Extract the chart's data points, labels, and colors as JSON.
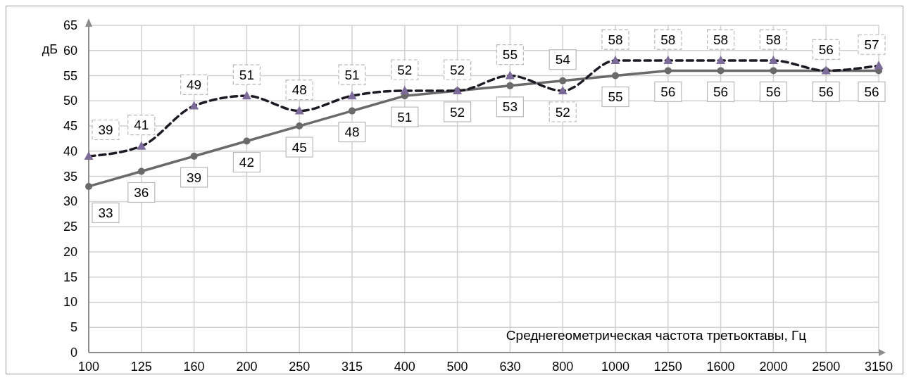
{
  "chart_data": {
    "type": "line",
    "ylabel": "дБ",
    "xlabel": "Среднегеометрическая частота третьоктавы, Гц",
    "categories": [
      "100",
      "125",
      "160",
      "200",
      "250",
      "315",
      "400",
      "500",
      "630",
      "800",
      "1000",
      "1250",
      "1600",
      "2000",
      "2500",
      "3150"
    ],
    "ylim": [
      0,
      65
    ],
    "yticks": [
      0,
      5,
      10,
      15,
      20,
      25,
      30,
      35,
      40,
      45,
      50,
      55,
      60,
      65
    ],
    "grid": true,
    "data_labels": true,
    "series": [
      {
        "color": "#6a6a6a",
        "marker": "circle",
        "line_style": "solid",
        "values": [
          33,
          36,
          39,
          42,
          45,
          48,
          51,
          52,
          53,
          54,
          55,
          56,
          56,
          56,
          56,
          56
        ]
      },
      {
        "color": "#7d6b9a",
        "marker": "triangle",
        "line_style": "dashed",
        "values": [
          39,
          41,
          49,
          51,
          48,
          51,
          52,
          52,
          55,
          52,
          58,
          58,
          58,
          58,
          56,
          57
        ]
      }
    ]
  }
}
